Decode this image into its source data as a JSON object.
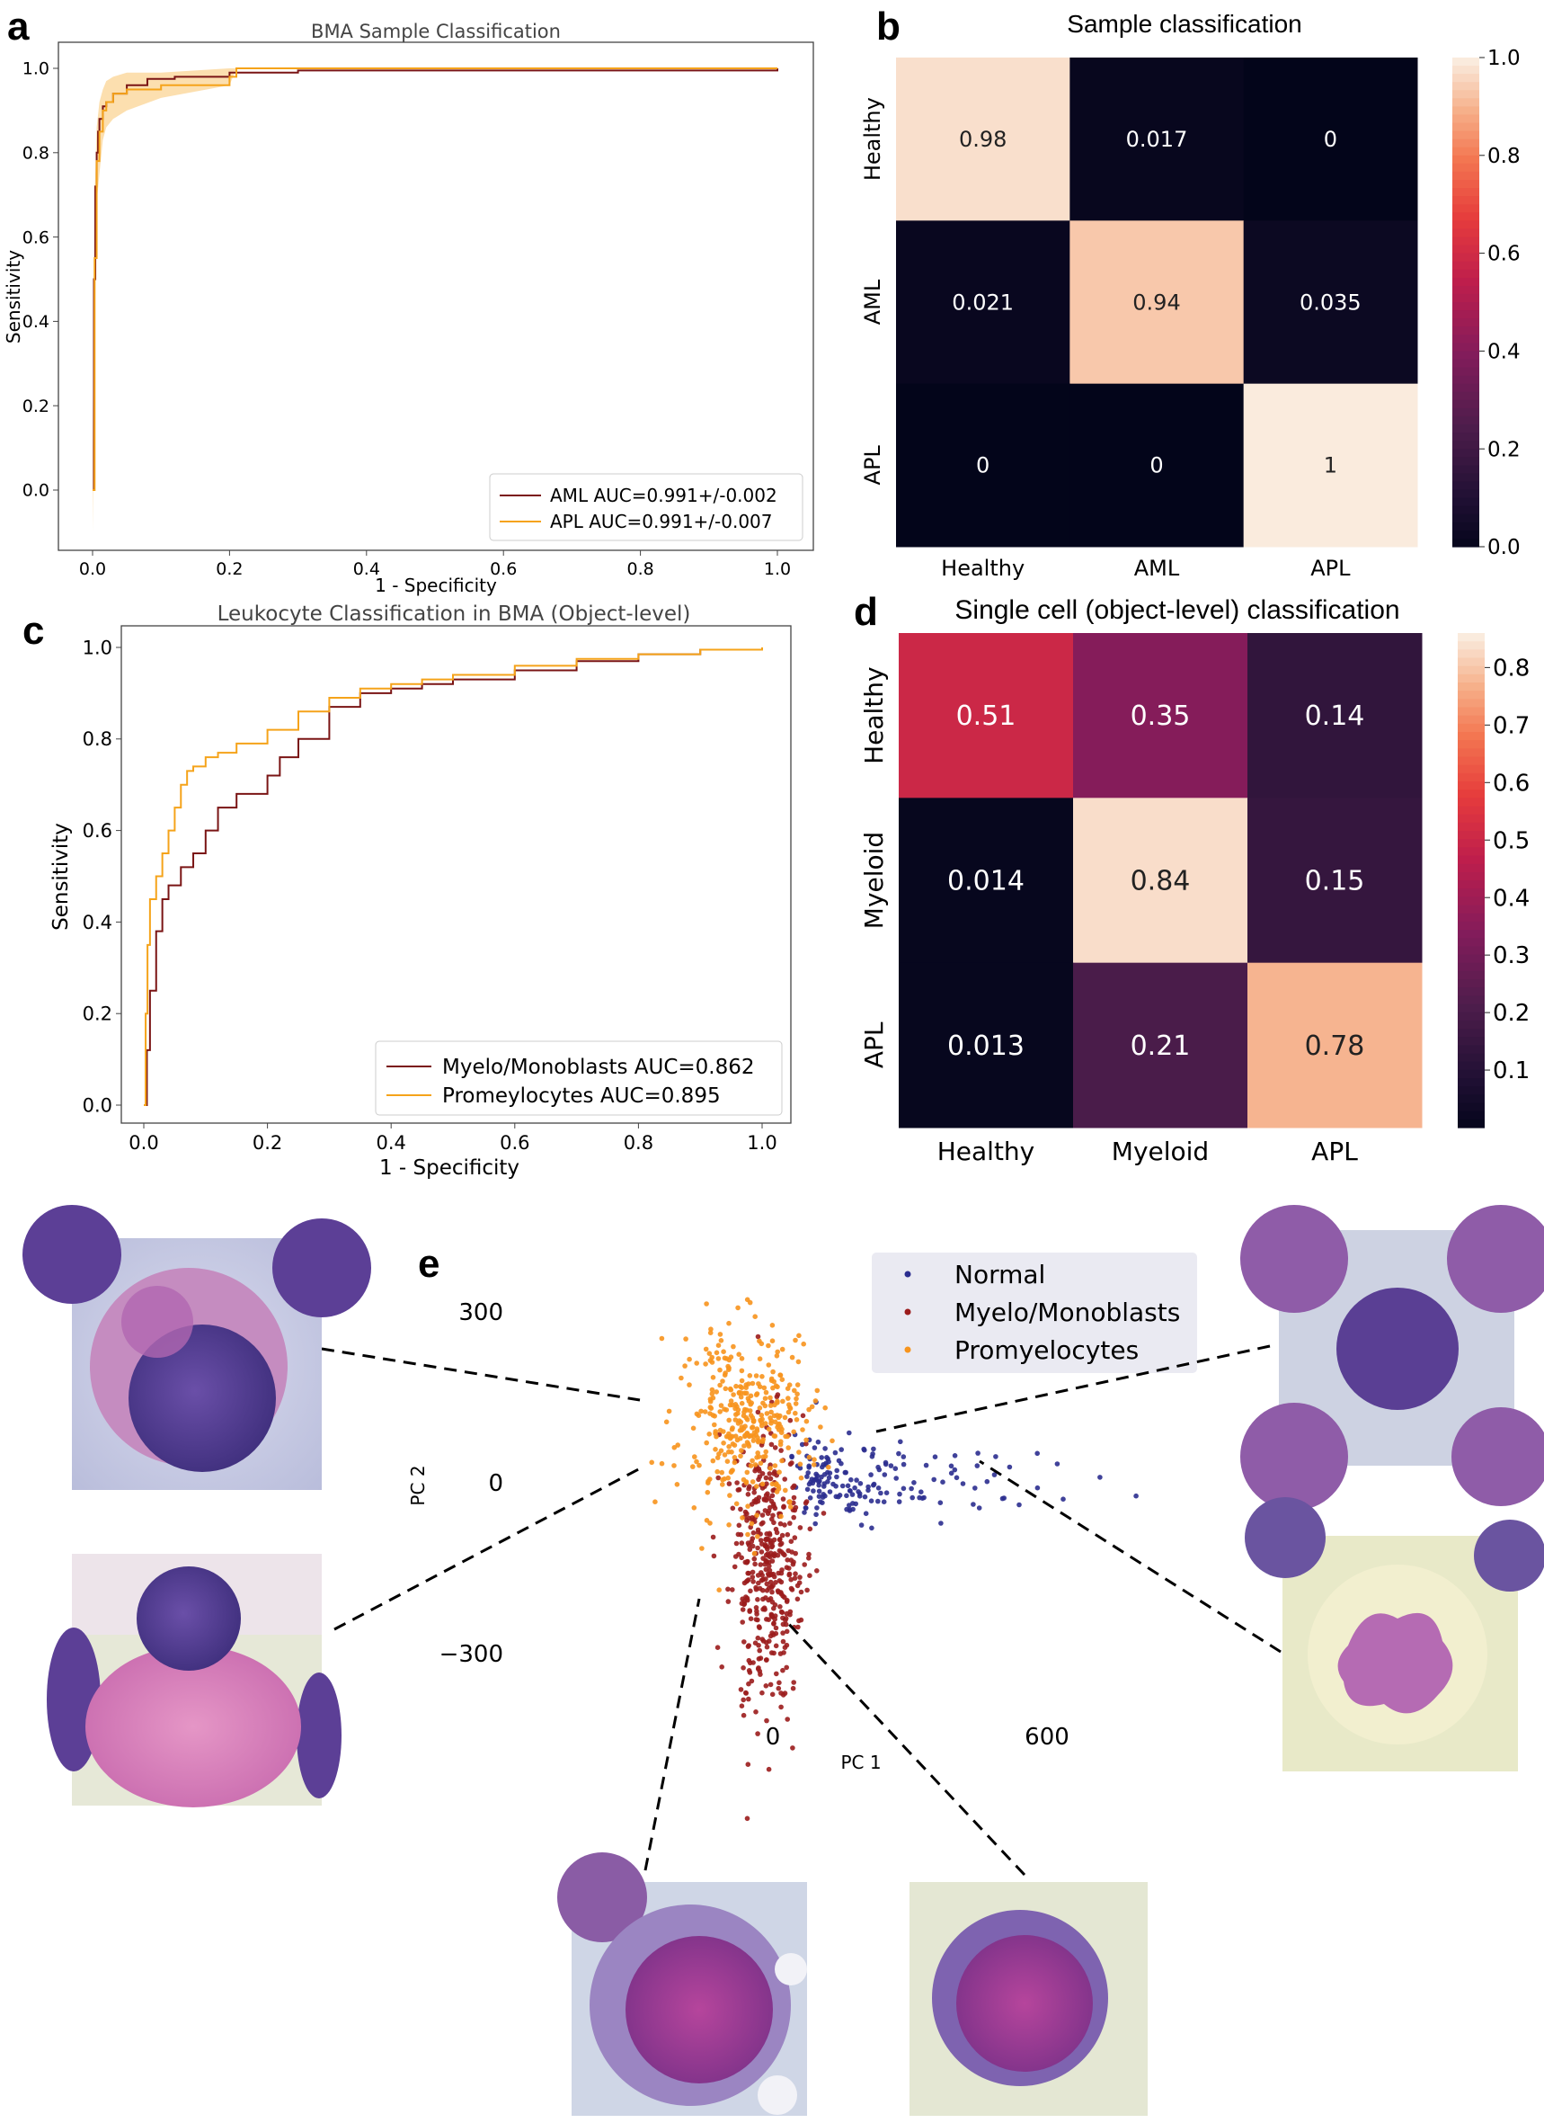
{
  "panel_letters": {
    "a": "a",
    "b": "b",
    "c": "c",
    "d": "d",
    "e": "e"
  },
  "chart_data": [
    {
      "id": "a",
      "type": "line",
      "title": "BMA Sample Classification",
      "xlabel": "1 - Specificity",
      "ylabel": "Sensitivity",
      "xlim": [
        0.0,
        1.0
      ],
      "ylim": [
        0.0,
        1.0
      ],
      "xticks": [
        "0.0",
        "0.2",
        "0.4",
        "0.6",
        "0.8",
        "1.0"
      ],
      "yticks": [
        "0.0",
        "0.2",
        "0.4",
        "0.6",
        "0.8",
        "1.0"
      ],
      "legend_position": "bottom-right",
      "series": [
        {
          "name": "AML AUC=0.991+/-0.002",
          "color": "#7a1414",
          "x": [
            0,
            0.002,
            0.004,
            0.006,
            0.008,
            0.01,
            0.015,
            0.02,
            0.03,
            0.05,
            0.08,
            0.12,
            0.2,
            0.3,
            1.0
          ],
          "y": [
            0,
            0.5,
            0.72,
            0.8,
            0.85,
            0.88,
            0.91,
            0.92,
            0.94,
            0.96,
            0.975,
            0.98,
            0.99,
            0.995,
            1.0
          ]
        },
        {
          "name": "APL AUC=0.991+/-0.007",
          "color": "#f5a31a",
          "x": [
            0,
            0.003,
            0.006,
            0.01,
            0.015,
            0.02,
            0.03,
            0.05,
            0.1,
            0.2,
            0.21,
            1.0
          ],
          "y": [
            0,
            0.55,
            0.78,
            0.85,
            0.9,
            0.92,
            0.94,
            0.95,
            0.96,
            0.98,
            1.0,
            1.0
          ]
        }
      ],
      "confidence_band": {
        "color": "#f5a31a",
        "x": [
          0,
          0.003,
          0.006,
          0.01,
          0.015,
          0.02,
          0.03,
          0.05,
          0.1,
          0.2,
          0.21,
          1.0
        ],
        "upper": [
          0.1,
          0.7,
          0.86,
          0.92,
          0.95,
          0.97,
          0.98,
          0.99,
          0.99,
          1.0,
          1.0,
          1.0
        ],
        "lower": [
          -0.1,
          0.35,
          0.68,
          0.75,
          0.83,
          0.86,
          0.88,
          0.9,
          0.93,
          0.96,
          1.0,
          1.0
        ]
      }
    },
    {
      "id": "b",
      "type": "heatmap",
      "title": "Sample classification",
      "rows": [
        "Healthy",
        "AML",
        "APL"
      ],
      "cols": [
        "Healthy",
        "AML",
        "APL"
      ],
      "cell_labels": [
        [
          "0.98",
          "0.017",
          "0"
        ],
        [
          "0.021",
          "0.94",
          "0.035"
        ],
        [
          "0",
          "0",
          "1"
        ]
      ],
      "values": [
        [
          0.98,
          0.017,
          0
        ],
        [
          0.021,
          0.94,
          0.035
        ],
        [
          0,
          0,
          1
        ]
      ],
      "colorbar": {
        "min": 0.0,
        "max": 1.0,
        "ticks": [
          "0.0",
          "0.2",
          "0.4",
          "0.6",
          "0.8",
          "1.0"
        ]
      }
    },
    {
      "id": "c",
      "type": "line",
      "title": "Leukocyte Classification in BMA (Object-level)",
      "xlabel": "1 - Specificity",
      "ylabel": "Sensitivity",
      "xlim": [
        0.0,
        1.0
      ],
      "ylim": [
        0.0,
        1.0
      ],
      "xticks": [
        "0.0",
        "0.2",
        "0.4",
        "0.6",
        "0.8",
        "1.0"
      ],
      "yticks": [
        "0.0",
        "0.2",
        "0.4",
        "0.6",
        "0.8",
        "1.0"
      ],
      "legend_position": "bottom-right",
      "series": [
        {
          "name": "Myelo/Monoblasts AUC=0.862",
          "color": "#7a1414",
          "x": [
            0,
            0.005,
            0.01,
            0.02,
            0.03,
            0.04,
            0.06,
            0.08,
            0.1,
            0.12,
            0.15,
            0.2,
            0.22,
            0.25,
            0.3,
            0.35,
            0.4,
            0.45,
            0.5,
            0.6,
            0.7,
            0.8,
            0.9,
            1.0
          ],
          "y": [
            0,
            0.12,
            0.25,
            0.38,
            0.45,
            0.48,
            0.52,
            0.55,
            0.6,
            0.65,
            0.68,
            0.72,
            0.76,
            0.8,
            0.87,
            0.9,
            0.91,
            0.92,
            0.93,
            0.95,
            0.97,
            0.985,
            0.995,
            1.0
          ]
        },
        {
          "name": "Promeylocytes AUC=0.895",
          "color": "#f5a31a",
          "x": [
            0,
            0.003,
            0.006,
            0.01,
            0.02,
            0.03,
            0.04,
            0.05,
            0.06,
            0.07,
            0.08,
            0.1,
            0.12,
            0.15,
            0.2,
            0.25,
            0.3,
            0.35,
            0.4,
            0.45,
            0.5,
            0.6,
            0.7,
            0.8,
            0.9,
            1.0
          ],
          "y": [
            0,
            0.2,
            0.35,
            0.45,
            0.5,
            0.55,
            0.6,
            0.65,
            0.7,
            0.73,
            0.74,
            0.76,
            0.77,
            0.79,
            0.82,
            0.86,
            0.89,
            0.91,
            0.92,
            0.93,
            0.94,
            0.96,
            0.975,
            0.985,
            0.995,
            1.0
          ]
        }
      ]
    },
    {
      "id": "d",
      "type": "heatmap",
      "title": "Single cell (object-level) classification",
      "rows": [
        "Healthy",
        "Myeloid",
        "APL"
      ],
      "cols": [
        "Healthy",
        "Myeloid",
        "APL"
      ],
      "cell_labels": [
        [
          "0.51",
          "0.35",
          "0.14"
        ],
        [
          "0.014",
          "0.84",
          "0.15"
        ],
        [
          "0.013",
          "0.21",
          "0.78"
        ]
      ],
      "values": [
        [
          0.51,
          0.35,
          0.14
        ],
        [
          0.014,
          0.84,
          0.15
        ],
        [
          0.013,
          0.21,
          0.78
        ]
      ],
      "colorbar": {
        "min": 0.0,
        "max": 0.86,
        "ticks": [
          "0.1",
          "0.2",
          "0.3",
          "0.4",
          "0.5",
          "0.6",
          "0.7",
          "0.8"
        ]
      }
    },
    {
      "id": "e",
      "type": "scatter",
      "xlabel": "PC 1",
      "ylabel": "PC 2",
      "xticks": [
        "0",
        "600"
      ],
      "yticks": [
        "300",
        "0",
        "−300"
      ],
      "legend_position": "top-right",
      "series": [
        {
          "name": "Normal",
          "color": "#2b2d8f",
          "center": [
            60,
            10
          ],
          "n": 170
        },
        {
          "name": "Myelo/Monoblasts",
          "color": "#9b1c1c",
          "center": [
            -20,
            -90
          ],
          "n": 420
        },
        {
          "name": "Promyelocytes",
          "color": "#f7941d",
          "center": [
            -40,
            90
          ],
          "n": 360
        }
      ]
    }
  ]
}
